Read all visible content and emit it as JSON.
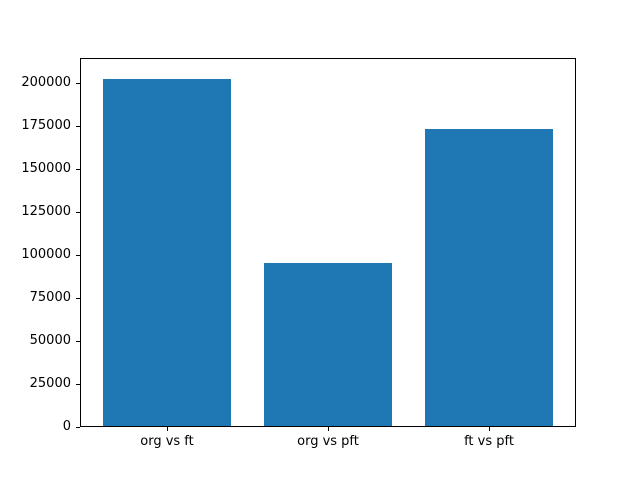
{
  "chart_data": {
    "type": "bar",
    "categories": [
      "org vs ft",
      "org vs pft",
      "ft vs pft"
    ],
    "values": [
      202000,
      95000,
      173000
    ],
    "title": "",
    "xlabel": "",
    "ylabel": "",
    "ylim": [
      0,
      214200
    ],
    "xlim": [
      -0.54,
      2.54
    ],
    "yticks": [
      0,
      25000,
      50000,
      75000,
      100000,
      125000,
      150000,
      175000,
      200000
    ],
    "bar_width_fraction": 0.8,
    "grid": false,
    "legend": null,
    "colors": {
      "bar": "#1f77b4",
      "spine": "#000000",
      "tick_label": "#000000",
      "background": "#ffffff"
    }
  }
}
